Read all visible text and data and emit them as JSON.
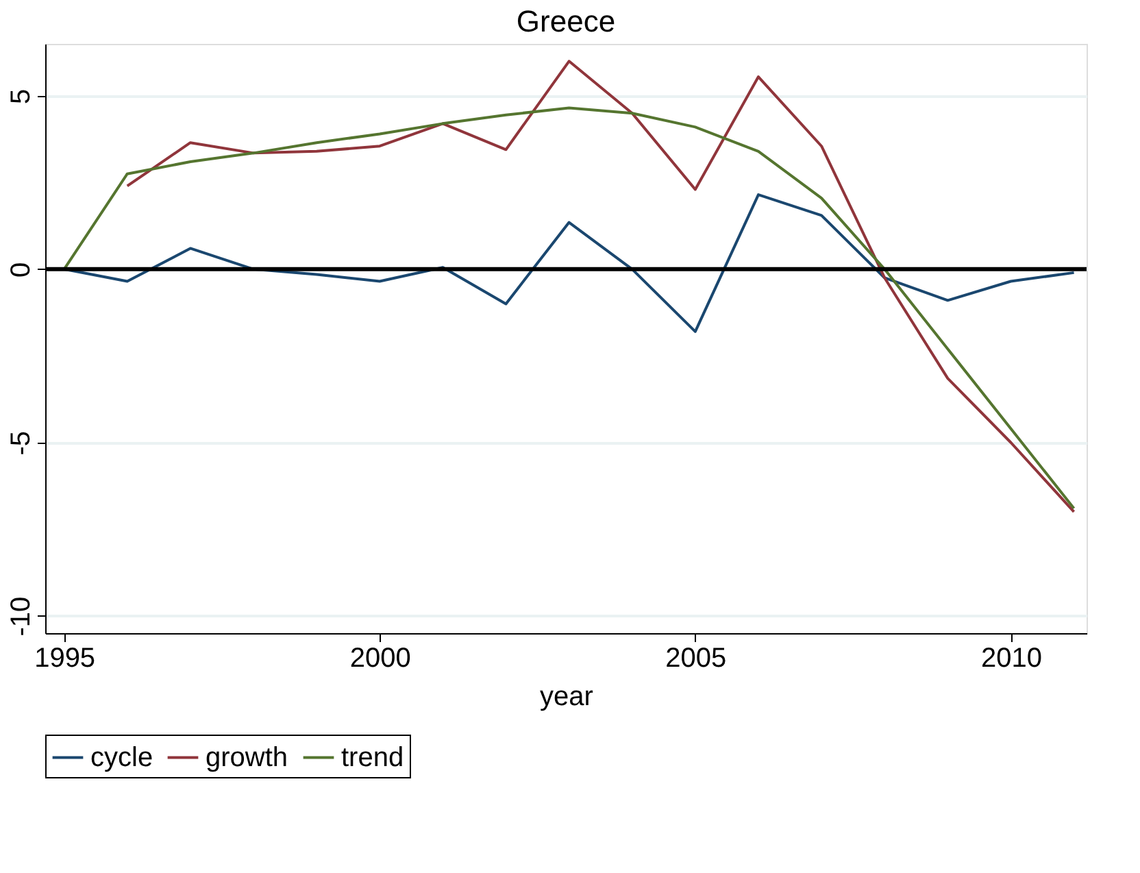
{
  "chart_data": {
    "type": "line",
    "title": "Greece",
    "xlabel": "year",
    "x": [
      1995,
      1996,
      1997,
      1998,
      1999,
      2000,
      2001,
      2002,
      2003,
      2004,
      2005,
      2006,
      2007,
      2008,
      2009,
      2010,
      2011
    ],
    "series": [
      {
        "name": "cycle",
        "color": "#1a476f",
        "values": [
          0,
          -0.35,
          0.6,
          0,
          -0.15,
          -0.35,
          0.05,
          -1.0,
          1.35,
          0,
          -1.8,
          2.15,
          1.55,
          -0.25,
          -0.9,
          -0.35,
          -0.1
        ]
      },
      {
        "name": "growth",
        "color": "#90353b",
        "values": [
          null,
          2.4,
          3.65,
          3.35,
          3.4,
          3.55,
          4.2,
          3.45,
          6.0,
          4.5,
          2.3,
          5.55,
          3.55,
          -0.25,
          -3.15,
          -5.0,
          -7.0
        ]
      },
      {
        "name": "trend",
        "color": "#55752f",
        "values": [
          0,
          2.75,
          3.1,
          3.35,
          3.65,
          3.9,
          4.2,
          4.45,
          4.65,
          4.5,
          4.1,
          3.4,
          2.05,
          0,
          -2.3,
          -4.6,
          -6.9
        ]
      }
    ],
    "xlim": [
      1994.7,
      2011.2
    ],
    "xticks": [
      1995,
      2000,
      2005,
      2010
    ],
    "ylim": [
      -10.5,
      6.5
    ],
    "yticks": [
      -10,
      -5,
      0,
      5
    ],
    "ref_lines": [
      {
        "axis": "y",
        "value": 0,
        "color": "#000000"
      }
    ],
    "grid": "y",
    "legend": "bottom",
    "marker": "none",
    "line_style": "solid"
  }
}
